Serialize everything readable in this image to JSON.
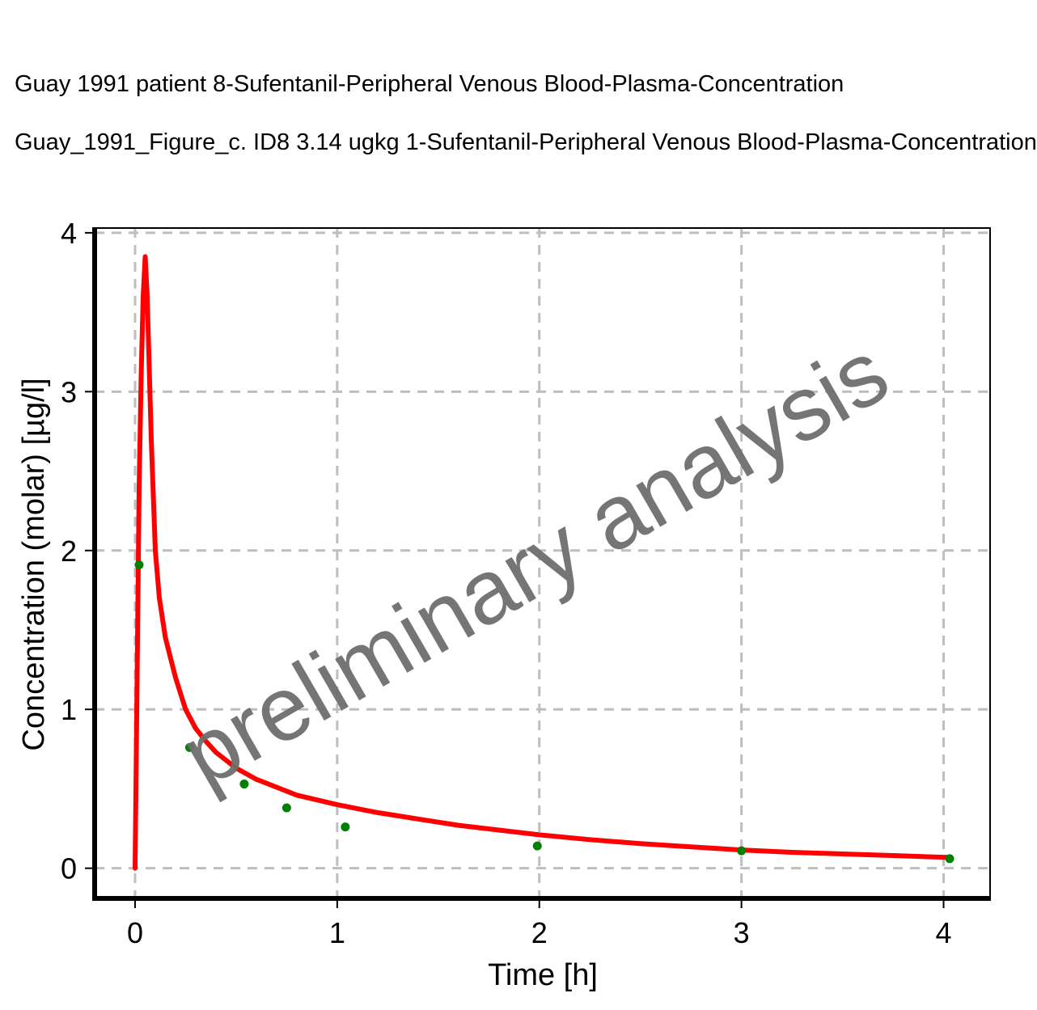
{
  "titles": {
    "line1": "Guay 1991 patient 8-Sufentanil-Peripheral Venous Blood-Plasma-Concentration",
    "line2": "Guay_1991_Figure_c. ID8 3.14 ugkg 1-Sufentanil-Peripheral Venous Blood-Plasma-Concentration"
  },
  "watermark": "preliminary analysis",
  "chart_data": {
    "type": "line",
    "xlabel": "Time [h]",
    "ylabel": "Concentration (molar) [µg/l]",
    "xlim": [
      -0.2,
      4.23
    ],
    "ylim": [
      -0.19,
      4.03
    ],
    "xticks": [
      0,
      1,
      2,
      3,
      4
    ],
    "yticks": [
      0,
      1,
      2,
      3,
      4
    ],
    "grid": true,
    "colors": {
      "simulated": "#ff0000",
      "observed": "#008000",
      "grid": "#bebebe",
      "watermark": "#6e6e6e"
    },
    "series": [
      {
        "kind": "line",
        "x": [
          0.0,
          0.01,
          0.02,
          0.03,
          0.04,
          0.05,
          0.06,
          0.08,
          0.1,
          0.12,
          0.15,
          0.2,
          0.25,
          0.3,
          0.35,
          0.4,
          0.5,
          0.6,
          0.7,
          0.8,
          0.9,
          1.0,
          1.2,
          1.4,
          1.6,
          1.8,
          2.0,
          2.25,
          2.5,
          2.75,
          3.0,
          3.25,
          3.5,
          3.75,
          4.02
        ],
        "y": [
          0.0,
          1.2,
          2.4,
          3.1,
          3.6,
          3.85,
          3.6,
          2.7,
          2.0,
          1.7,
          1.45,
          1.2,
          1.0,
          0.88,
          0.8,
          0.73,
          0.63,
          0.56,
          0.51,
          0.46,
          0.43,
          0.4,
          0.35,
          0.31,
          0.27,
          0.24,
          0.21,
          0.18,
          0.155,
          0.135,
          0.115,
          0.1,
          0.09,
          0.08,
          0.068
        ]
      },
      {
        "kind": "scatter",
        "x": [
          0.02,
          0.27,
          0.54,
          0.75,
          1.04,
          1.99,
          3.0,
          4.03
        ],
        "y": [
          1.91,
          0.76,
          0.53,
          0.38,
          0.26,
          0.14,
          0.11,
          0.06
        ]
      }
    ]
  }
}
